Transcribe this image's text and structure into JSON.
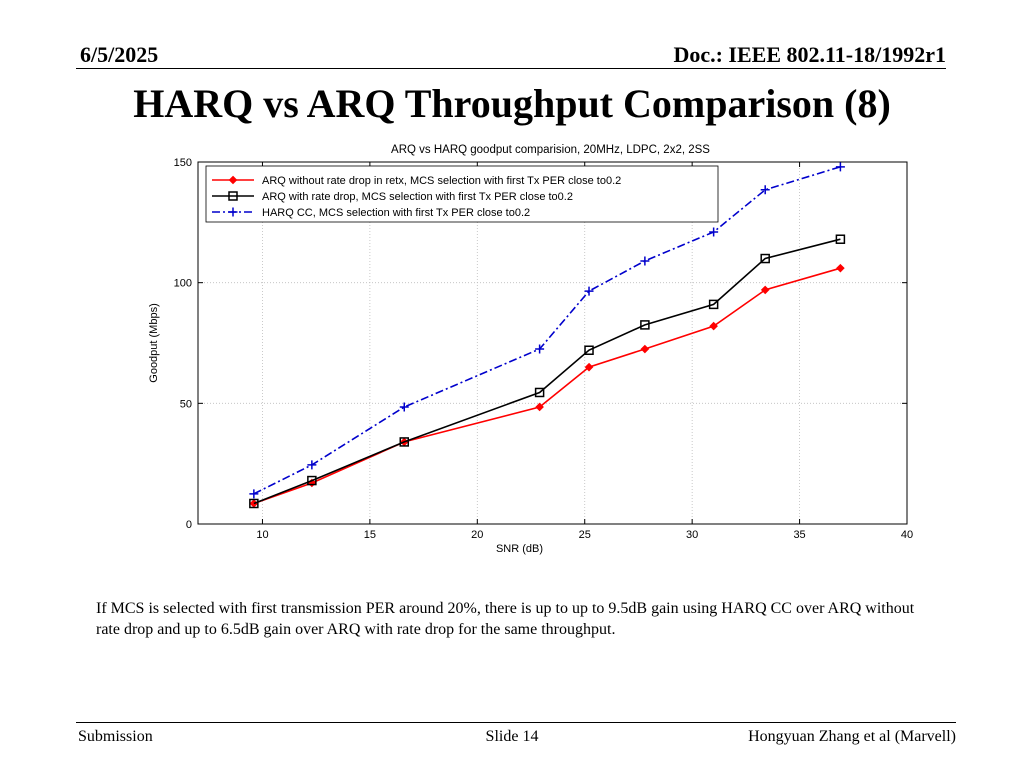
{
  "header": {
    "date": "6/5/2025",
    "doc": "Doc.: IEEE 802.11-18/1992r1"
  },
  "slide_title": "HARQ vs ARQ Throughput Comparison (8)",
  "body_text": "If MCS is selected with first transmission PER around 20%, there is up to up to 9.5dB gain using HARQ CC over ARQ without rate drop and up to 6.5dB gain over ARQ with rate drop for the same throughput.",
  "footer": {
    "left": "Submission",
    "center": "Slide 14",
    "right": "Hongyuan Zhang et al (Marvell)"
  },
  "chart_data": {
    "type": "line",
    "title": "ARQ vs HARQ goodput comparision, 20MHz, LDPC, 2x2, 2SS",
    "xlabel": "SNR (dB)",
    "ylabel": "Goodput (Mbps)",
    "xlim": [
      7,
      40
    ],
    "ylim": [
      0,
      150
    ],
    "xticks": [
      10,
      15,
      20,
      25,
      30,
      35,
      40
    ],
    "yticks": [
      0,
      50,
      100,
      150
    ],
    "grid": true,
    "legend_position": "top-left",
    "series": [
      {
        "name": "ARQ without rate drop in retx, MCS selection with first Tx PER close to0.2",
        "color": "#ff0000",
        "line_style": "solid",
        "marker": "diamond",
        "x": [
          9.6,
          12.3,
          16.6,
          22.9,
          25.2,
          27.8,
          31.0,
          33.4,
          36.9
        ],
        "y": [
          8.5,
          17,
          34,
          48.5,
          65,
          72.5,
          82,
          97,
          106
        ]
      },
      {
        "name": "ARQ with rate drop, MCS selection with first Tx PER close to0.2",
        "color": "#000000",
        "line_style": "solid",
        "marker": "square",
        "x": [
          9.6,
          12.3,
          16.6,
          22.9,
          25.2,
          27.8,
          31.0,
          33.4,
          36.9
        ],
        "y": [
          8.5,
          18,
          34,
          54.5,
          72,
          82.5,
          91,
          110,
          118
        ]
      },
      {
        "name": "HARQ CC, MCS selection with first Tx PER close to0.2",
        "color": "#0000cc",
        "line_style": "dashdot",
        "marker": "plus",
        "x": [
          9.6,
          12.3,
          16.6,
          22.9,
          25.2,
          27.8,
          31.0,
          33.4,
          36.9
        ],
        "y": [
          12.5,
          24.5,
          48.5,
          72.5,
          96.5,
          109,
          121,
          138.5,
          148
        ]
      }
    ]
  }
}
